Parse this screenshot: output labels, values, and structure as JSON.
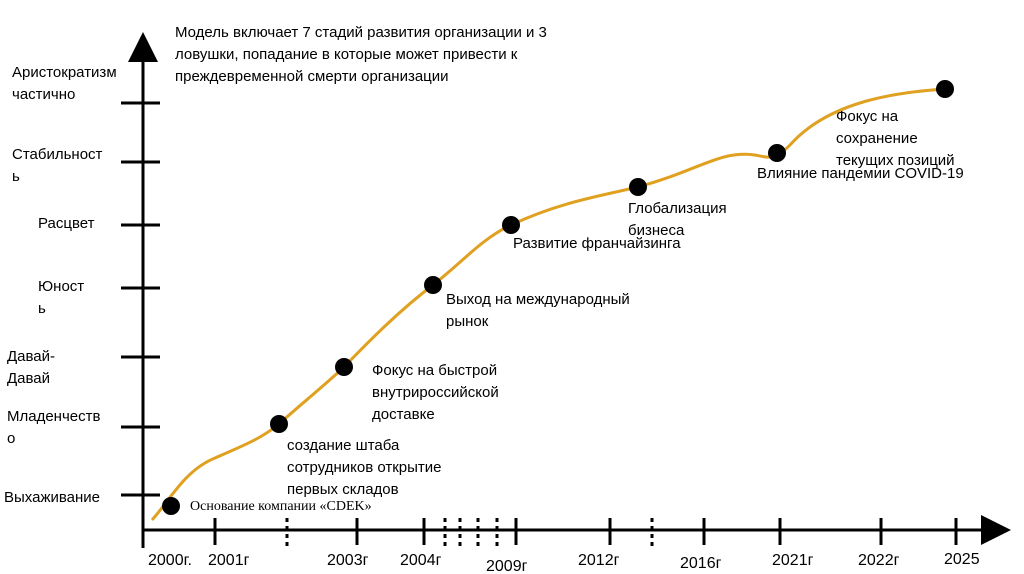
{
  "header": {
    "lines": [
      "Модель включает 7 стадий развития организации и 3",
      "ловушки, попадание в которые может привести к",
      "преждевременной смерти организации"
    ]
  },
  "stages": [
    {
      "lines": [
        "Аристократизм",
        "частично"
      ]
    },
    {
      "lines": [
        "Стабильност",
        "ь"
      ]
    },
    {
      "lines": [
        "Расцвет"
      ]
    },
    {
      "lines": [
        "Юност",
        "ь"
      ]
    },
    {
      "lines": [
        "Давай-",
        "Давай"
      ]
    },
    {
      "lines": [
        "Младенчеств",
        "о"
      ]
    },
    {
      "lines": [
        "Выхаживание"
      ]
    }
  ],
  "years": [
    "2000г.",
    "2001г",
    "2003г",
    "2004г",
    "2009г",
    "2012г",
    "2016г",
    "2021г",
    "2022г",
    "2025"
  ],
  "events": [
    {
      "lines": [
        "Основание компании «CDEK»"
      ]
    },
    {
      "lines": [
        "создание штаба",
        "сотрудников открытие",
        "первых складов"
      ]
    },
    {
      "lines": [
        "Фокус на быстрой",
        "внутрироссийской",
        "доставке"
      ]
    },
    {
      "lines": [
        "Выход на международный",
        "рынок"
      ]
    },
    {
      "lines": [
        "Развитие франчайзинга"
      ]
    },
    {
      "lines": [
        "Глобализация",
        "бизнеса"
      ]
    },
    {
      "lines": [
        "Влияние пандемии COVID-19"
      ]
    },
    {
      "lines": [
        "Фокус на",
        "сохранение",
        "текущих позиций"
      ]
    }
  ]
}
